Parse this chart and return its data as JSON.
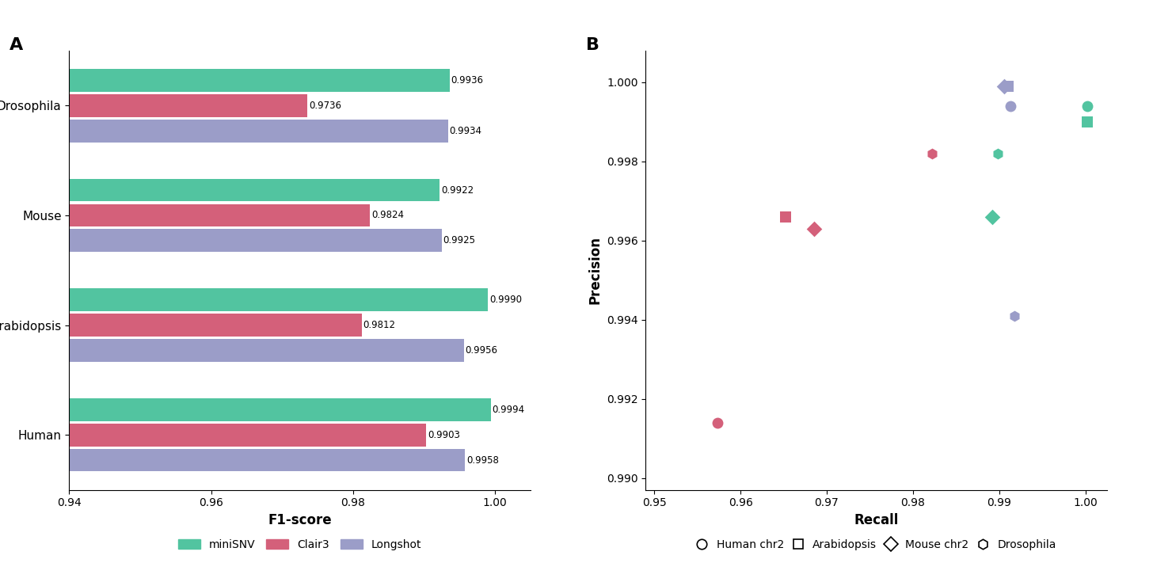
{
  "bar_categories": [
    "Human",
    "Arabidopsis",
    "Mouse",
    "Drosophila"
  ],
  "bar_data": {
    "miniSNV": [
      0.9994,
      0.999,
      0.9922,
      0.9936
    ],
    "Clair3": [
      0.9903,
      0.9812,
      0.9824,
      0.9736
    ],
    "Longshot": [
      0.9958,
      0.9956,
      0.9925,
      0.9934
    ]
  },
  "bar_colors": {
    "miniSNV": "#52C4A0",
    "Clair3": "#D4607A",
    "Longshot": "#9B9DC8"
  },
  "bar_xlim": [
    0.94,
    1.005
  ],
  "bar_xlabel": "F1-score",
  "bar_xticks": [
    0.94,
    0.96,
    0.98,
    1.0
  ],
  "panel_a_label": "A",
  "panel_b_label": "B",
  "scatter_data": {
    "miniSNV": {
      "Human chr2": {
        "recall": 1.0002,
        "precision": 0.9994
      },
      "Arabidopsis": {
        "recall": 1.0002,
        "precision": 0.999
      },
      "Mouse chr2": {
        "recall": 0.9892,
        "precision": 0.9966
      },
      "Drosophila": {
        "recall": 0.9898,
        "precision": 0.9982
      }
    },
    "Clair3": {
      "Human chr2": {
        "recall": 0.9573,
        "precision": 0.9914
      },
      "Arabidopsis": {
        "recall": 0.9652,
        "precision": 0.9966
      },
      "Mouse chr2": {
        "recall": 0.9685,
        "precision": 0.9963
      },
      "Drosophila": {
        "recall": 0.9822,
        "precision": 0.9982
      }
    },
    "Longshot": {
      "Human chr2": {
        "recall": 0.9913,
        "precision": 0.9994
      },
      "Arabidopsis": {
        "recall": 0.991,
        "precision": 0.9999
      },
      "Mouse chr2": {
        "recall": 0.9906,
        "precision": 0.9999
      },
      "Drosophila": {
        "recall": 0.9918,
        "precision": 0.9941
      }
    }
  },
  "scatter_colors": {
    "miniSNV": "#52C4A0",
    "Clair3": "#D4607A",
    "Longshot": "#9B9DC8"
  },
  "scatter_markers": {
    "Human chr2": "o",
    "Arabidopsis": "s",
    "Mouse chr2": "D",
    "Drosophila": "h"
  },
  "scatter_xlim": [
    0.949,
    1.0025
  ],
  "scatter_ylim": [
    0.9897,
    1.0008
  ],
  "scatter_xlabel": "Recall",
  "scatter_ylabel": "Precision",
  "scatter_xticks": [
    0.95,
    0.96,
    0.97,
    0.98,
    0.99,
    1.0
  ],
  "scatter_yticks": [
    0.99,
    0.992,
    0.994,
    0.996,
    0.998,
    1.0
  ]
}
